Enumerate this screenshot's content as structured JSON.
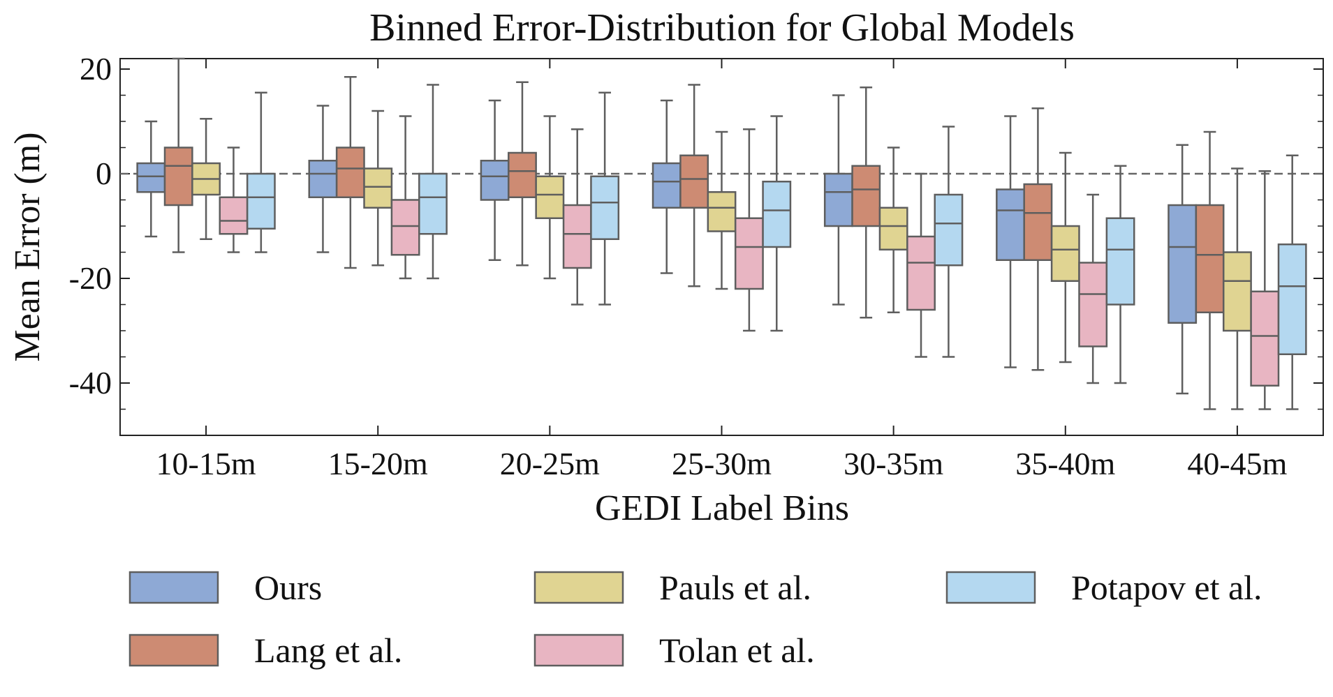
{
  "chart_data": {
    "type": "box",
    "title": "Binned Error-Distribution for Global Models",
    "xlabel": "GEDI Label Bins",
    "ylabel": "Mean Error (m)",
    "ylim": [
      -50,
      22
    ],
    "yticks": [
      20,
      0,
      -20,
      -40
    ],
    "ytick_labels": [
      "20",
      "0",
      "-20",
      "-40"
    ],
    "reference_line": 0,
    "grid": false,
    "legend_position": "bottom",
    "categories": [
      "10-15m",
      "15-20m",
      "20-25m",
      "25-30m",
      "30-35m",
      "35-40m",
      "40-45m"
    ],
    "series": [
      {
        "name": "Ours",
        "color": "#8ea9d5",
        "stats": [
          {
            "whislo": -12,
            "q1": -3.5,
            "med": -0.5,
            "q3": 2,
            "whishi": 10
          },
          {
            "whislo": -15,
            "q1": -4.5,
            "med": 0,
            "q3": 2.5,
            "whishi": 13
          },
          {
            "whislo": -16.5,
            "q1": -5,
            "med": -0.5,
            "q3": 2.5,
            "whishi": 14
          },
          {
            "whislo": -19,
            "q1": -6.5,
            "med": -1.5,
            "q3": 2,
            "whishi": 14
          },
          {
            "whislo": -25,
            "q1": -10,
            "med": -3.5,
            "q3": 0,
            "whishi": 15
          },
          {
            "whislo": -37,
            "q1": -16.5,
            "med": -7,
            "q3": -3,
            "whishi": 11
          },
          {
            "whislo": -42,
            "q1": -28.5,
            "med": -14,
            "q3": -6,
            "whishi": 5.5
          }
        ]
      },
      {
        "name": "Lang et al.",
        "color": "#cd8b73",
        "stats": [
          {
            "whislo": -15,
            "q1": -6,
            "med": 1.5,
            "q3": 5,
            "whishi": 22
          },
          {
            "whislo": -18,
            "q1": -4.5,
            "med": 1,
            "q3": 5,
            "whishi": 18.5
          },
          {
            "whislo": -17.5,
            "q1": -4.5,
            "med": 0.5,
            "q3": 4,
            "whishi": 17.5
          },
          {
            "whislo": -21.5,
            "q1": -6.5,
            "med": -1,
            "q3": 3.5,
            "whishi": 17
          },
          {
            "whislo": -27.5,
            "q1": -10,
            "med": -3,
            "q3": 1.5,
            "whishi": 16.5
          },
          {
            "whislo": -37.5,
            "q1": -16.5,
            "med": -7.5,
            "q3": -2,
            "whishi": 12.5
          },
          {
            "whislo": -45,
            "q1": -26.5,
            "med": -15.5,
            "q3": -6,
            "whishi": 8
          }
        ]
      },
      {
        "name": "Pauls et al.",
        "color": "#e0d492",
        "stats": [
          {
            "whislo": -12.5,
            "q1": -4,
            "med": -1,
            "q3": 2,
            "whishi": 10.5
          },
          {
            "whislo": -17.5,
            "q1": -6.5,
            "med": -2.5,
            "q3": 1,
            "whishi": 12
          },
          {
            "whislo": -20,
            "q1": -8.5,
            "med": -4,
            "q3": -0.5,
            "whishi": 11
          },
          {
            "whislo": -22,
            "q1": -11,
            "med": -6.5,
            "q3": -3.5,
            "whishi": 8
          },
          {
            "whislo": -26.5,
            "q1": -14.5,
            "med": -10,
            "q3": -6.5,
            "whishi": 5
          },
          {
            "whislo": -36,
            "q1": -20.5,
            "med": -14.5,
            "q3": -10,
            "whishi": 4
          },
          {
            "whislo": -45,
            "q1": -30,
            "med": -20.5,
            "q3": -15,
            "whishi": 1
          }
        ]
      },
      {
        "name": "Tolan et al.",
        "color": "#e8b5c2",
        "stats": [
          {
            "whislo": -15,
            "q1": -11.5,
            "med": -9,
            "q3": -4.5,
            "whishi": 5
          },
          {
            "whislo": -20,
            "q1": -15.5,
            "med": -10,
            "q3": -5,
            "whishi": 11
          },
          {
            "whislo": -25,
            "q1": -18,
            "med": -11.5,
            "q3": -6,
            "whishi": 8.5
          },
          {
            "whislo": -30,
            "q1": -22,
            "med": -14,
            "q3": -8.5,
            "whishi": 8.5
          },
          {
            "whislo": -35,
            "q1": -26,
            "med": -17,
            "q3": -12,
            "whishi": 0
          },
          {
            "whislo": -40,
            "q1": -33,
            "med": -23,
            "q3": -17,
            "whishi": -4
          },
          {
            "whislo": -45,
            "q1": -40.5,
            "med": -31,
            "q3": -22.5,
            "whishi": 0.5
          }
        ]
      },
      {
        "name": "Potapov et al.",
        "color": "#b4d8f0",
        "stats": [
          {
            "whislo": -15,
            "q1": -10.5,
            "med": -4.5,
            "q3": 0,
            "whishi": 15.5
          },
          {
            "whislo": -20,
            "q1": -11.5,
            "med": -4.5,
            "q3": 0,
            "whishi": 17
          },
          {
            "whislo": -25,
            "q1": -12.5,
            "med": -5.5,
            "q3": -0.5,
            "whishi": 15.5
          },
          {
            "whislo": -30,
            "q1": -14,
            "med": -7,
            "q3": -1.5,
            "whishi": 11
          },
          {
            "whislo": -35,
            "q1": -17.5,
            "med": -9.5,
            "q3": -4,
            "whishi": 9
          },
          {
            "whislo": -40,
            "q1": -25,
            "med": -14.5,
            "q3": -8.5,
            "whishi": 1.5
          },
          {
            "whislo": -45,
            "q1": -34.5,
            "med": -21.5,
            "q3": -13.5,
            "whishi": 3.5
          }
        ]
      }
    ]
  }
}
